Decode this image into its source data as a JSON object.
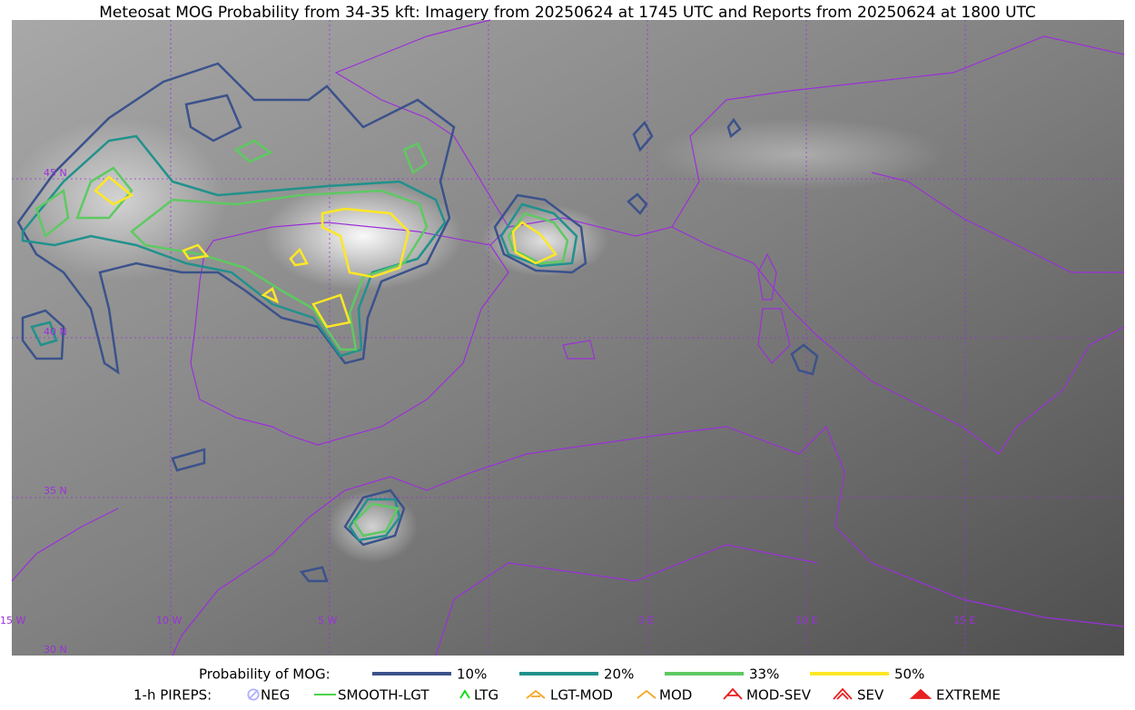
{
  "title": "Meteosat MOG Probability from 34-35 kft: Imagery from 20250624 at 1745 UTC and Reports from 20250624 at 1800 UTC",
  "map": {
    "lat_labels": [
      "45 N",
      "40 N",
      "35 N",
      "30 N"
    ],
    "lon_labels": [
      "15 W",
      "10 W",
      "5 W",
      "5 E",
      "10 E",
      "15 E"
    ]
  },
  "legend": {
    "mog": {
      "label": "Probability of MOG:",
      "items": [
        {
          "label": "10%",
          "color": "#3b528b"
        },
        {
          "label": "20%",
          "color": "#21918c"
        },
        {
          "label": "33%",
          "color": "#5ec962"
        },
        {
          "label": "50%",
          "color": "#fde725"
        }
      ]
    },
    "pireps": {
      "label": "1-h PIREPS:",
      "items": [
        {
          "label": "NEG",
          "color": "#b0b0ff"
        },
        {
          "label": "SMOOTH-LGT",
          "color": "#33cc33"
        },
        {
          "label": "LTG",
          "color": "#00dd00"
        },
        {
          "label": "LGT-MOD",
          "color": "#f5a623"
        },
        {
          "label": "MOD",
          "color": "#f5a623"
        },
        {
          "label": "MOD-SEV",
          "color": "#e82020"
        },
        {
          "label": "SEV",
          "color": "#e82020"
        },
        {
          "label": "EXTREME",
          "color": "#e82020"
        }
      ]
    }
  }
}
